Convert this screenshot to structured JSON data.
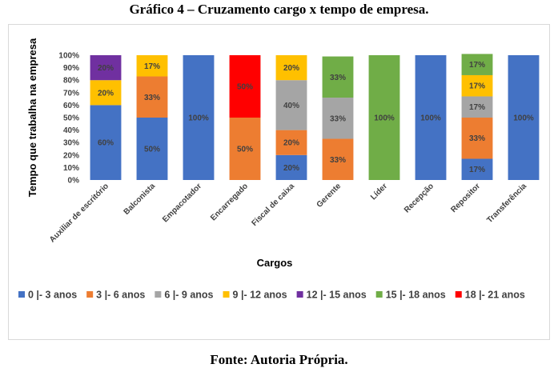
{
  "caption": {
    "title": "Gráfico 4 – Cruzamento cargo x tempo de empresa.",
    "source": "Fonte: Autoria Própria."
  },
  "chart_data": {
    "type": "bar",
    "stacked": true,
    "percent_stacked": true,
    "xlabel": "Cargos",
    "ylabel": "Tempo que trabalha na empresa",
    "ylim": [
      0,
      100
    ],
    "y_ticks": [
      "0%",
      "10%",
      "20%",
      "30%",
      "40%",
      "50%",
      "60%",
      "70%",
      "80%",
      "90%",
      "100%"
    ],
    "grid": false,
    "legend_position": "bottom",
    "categories": [
      "Auxiliar de escritório",
      "Balconista",
      "Empacotador",
      "Encarregado",
      "Fiscal de caixa",
      "Gerente",
      "Líder",
      "Recepção",
      "Repositor",
      "Transferência"
    ],
    "series": [
      {
        "name": "0 |- 3 anos",
        "color": "#4472c4",
        "values": [
          60,
          50,
          100,
          0,
          20,
          0,
          0,
          100,
          17,
          100
        ],
        "labels": [
          "60%",
          "50%",
          "100%",
          "",
          "20%",
          "",
          "",
          "100%",
          "17%",
          "100%"
        ]
      },
      {
        "name": "3 |- 6 anos",
        "color": "#ed7d31",
        "values": [
          0,
          33,
          0,
          50,
          20,
          33,
          0,
          0,
          33,
          0
        ],
        "labels": [
          "",
          "33%",
          "",
          "50%",
          "20%",
          "33%",
          "",
          "",
          "33%",
          ""
        ]
      },
      {
        "name": "6 |- 9 anos",
        "color": "#a5a5a5",
        "values": [
          0,
          0,
          0,
          0,
          40,
          33,
          0,
          0,
          17,
          0
        ],
        "labels": [
          "",
          "",
          "",
          "",
          "40%",
          "33%",
          "",
          "",
          "17%",
          ""
        ]
      },
      {
        "name": "9 |- 12 anos",
        "color": "#ffc000",
        "values": [
          20,
          17,
          0,
          0,
          20,
          0,
          0,
          0,
          17,
          0
        ],
        "labels": [
          "20%",
          "17%",
          "",
          "",
          "20%",
          "",
          "",
          "",
          "17%",
          ""
        ]
      },
      {
        "name": "12 |- 15 anos",
        "color": "#7030a0",
        "values": [
          20,
          0,
          0,
          0,
          0,
          0,
          0,
          0,
          0,
          0
        ],
        "labels": [
          "20%",
          "",
          "",
          "",
          "",
          "",
          "",
          "",
          "",
          ""
        ]
      },
      {
        "name": "15 |- 18 anos",
        "color": "#70ad47",
        "values": [
          0,
          0,
          0,
          0,
          0,
          33,
          100,
          0,
          17,
          0
        ],
        "labels": [
          "",
          "",
          "",
          "",
          "",
          "33%",
          "100%",
          "",
          "17%",
          ""
        ]
      },
      {
        "name": "18 |- 21 anos",
        "color": "#ff0000",
        "values": [
          0,
          0,
          0,
          50,
          0,
          0,
          0,
          0,
          0,
          0
        ],
        "labels": [
          "",
          "",
          "",
          "50%",
          "",
          "",
          "",
          "",
          "",
          ""
        ]
      }
    ]
  }
}
